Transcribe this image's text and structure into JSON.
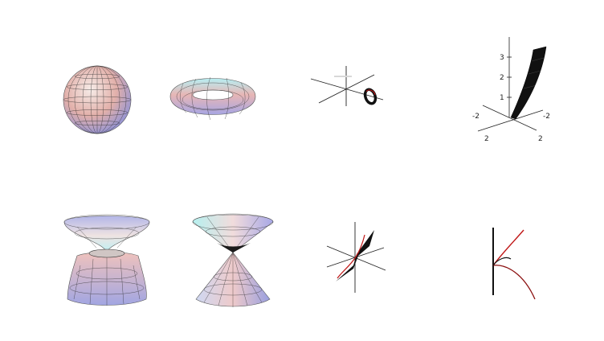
{
  "colors": {
    "surface_warm": "#e9b7ad",
    "surface_cool": "#a9b1e6",
    "surface_light": "#f3e8e3",
    "surface_cyan": "#b7eef2",
    "mesh": "#2a2a2a",
    "axis": "#222222",
    "curve": "#c01818",
    "fill_dark": "#111111"
  },
  "panels": [
    {
      "id": "sphere",
      "row": 1,
      "col": 1
    },
    {
      "id": "torus",
      "row": 1,
      "col": 2
    },
    {
      "id": "curve-3d-ring",
      "row": 1,
      "col": 3
    },
    {
      "id": "surface-3d-axes",
      "row": 1,
      "col": 4,
      "z_ticks": [
        "1",
        "2",
        "3"
      ],
      "x_ticks": [
        "-2",
        "2"
      ],
      "y_ticks": [
        "-2",
        "2"
      ]
    },
    {
      "id": "hyperboloid",
      "row": 2,
      "col": 1
    },
    {
      "id": "double-cone",
      "row": 2,
      "col": 2
    },
    {
      "id": "twisted-band",
      "row": 2,
      "col": 3
    },
    {
      "id": "planar-curve",
      "row": 2,
      "col": 4
    }
  ]
}
